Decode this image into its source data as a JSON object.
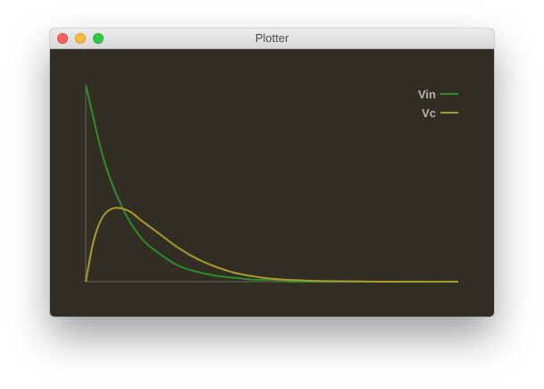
{
  "window": {
    "title": "Plotter"
  },
  "chart_data": {
    "type": "line",
    "title": "",
    "xlabel": "",
    "ylabel": "",
    "grid": false,
    "legend_position": "top-right",
    "background": "#322e24",
    "axis_color": "#6b675c",
    "series": [
      {
        "name": "Vin",
        "color": "#2e8b2e",
        "x": [
          0,
          0.05,
          0.1,
          0.15,
          0.2,
          0.25,
          0.3,
          0.35,
          0.4,
          0.45,
          0.5,
          0.55,
          0.6,
          0.65,
          0.7,
          0.75,
          0.8,
          0.85,
          0.9,
          0.95,
          1
        ],
        "y": [
          1,
          0.61,
          0.37,
          0.22,
          0.14,
          0.08,
          0.05,
          0.03,
          0.02,
          0.01,
          0.01,
          0,
          0,
          0,
          0,
          0,
          0,
          0,
          0,
          0,
          0
        ]
      },
      {
        "name": "Vc",
        "color": "#a89a2e",
        "x": [
          0,
          0.02,
          0.04,
          0.06,
          0.08,
          0.1,
          0.12,
          0.15,
          0.2,
          0.25,
          0.3,
          0.35,
          0.4,
          0.45,
          0.5,
          0.55,
          0.6,
          0.65,
          0.7,
          0.75,
          0.8,
          0.85,
          0.9,
          0.95,
          1
        ],
        "y": [
          0,
          0.2,
          0.31,
          0.36,
          0.375,
          0.37,
          0.355,
          0.31,
          0.24,
          0.17,
          0.115,
          0.075,
          0.045,
          0.027,
          0.015,
          0.009,
          0.005,
          0.003,
          0.002,
          0.001,
          0,
          0,
          0,
          0,
          0
        ]
      }
    ]
  }
}
